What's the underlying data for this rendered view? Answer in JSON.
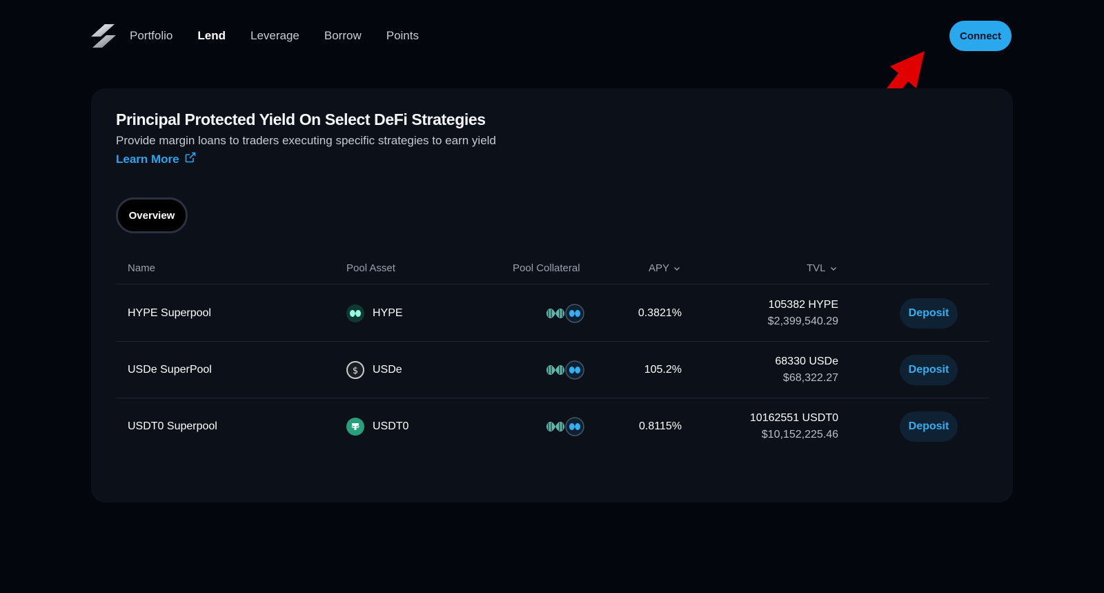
{
  "nav": {
    "logo": "brand-logo",
    "links": [
      {
        "label": "Portfolio",
        "active": false
      },
      {
        "label": "Lend",
        "active": true
      },
      {
        "label": "Leverage",
        "active": false
      },
      {
        "label": "Borrow",
        "active": false
      },
      {
        "label": "Points",
        "active": false
      }
    ],
    "connect_label": "Connect"
  },
  "annotation": {
    "icon": "red-arrow-pointer",
    "color": "#e00000"
  },
  "hero": {
    "title": "Principal Protected Yield On Select DeFi Strategies",
    "subtitle": "Provide margin loans to traders executing specific strategies to earn yield",
    "learn_more": "Learn More",
    "learn_more_icon": "external-link-icon"
  },
  "tabs": [
    {
      "label": "Overview",
      "active": true
    }
  ],
  "table": {
    "columns": {
      "name": "Name",
      "pool_asset": "Pool Asset",
      "pool_collateral": "Pool Collateral",
      "apy": "APY",
      "tvl": "TVL"
    },
    "rows": [
      {
        "name": "HYPE Superpool",
        "asset": "HYPE",
        "asset_icon": "hype-token-icon",
        "apy": "0.3821%",
        "tvl_amount": "105382 HYPE",
        "tvl_usd": "$2,399,540.29",
        "action": "Deposit"
      },
      {
        "name": "USDe SuperPool",
        "asset": "USDe",
        "asset_icon": "usde-token-icon",
        "apy": "105.2%",
        "tvl_amount": "68330 USDe",
        "tvl_usd": "$68,322.27",
        "action": "Deposit"
      },
      {
        "name": "USDT0 Superpool",
        "asset": "USDT0",
        "asset_icon": "usdt0-token-icon",
        "apy": "0.8115%",
        "tvl_amount": "10162551 USDT0",
        "tvl_usd": "$10,152,225.46",
        "action": "Deposit"
      }
    ]
  },
  "colors": {
    "background": "#03060d",
    "card": "#0c1019",
    "accent": "#29a8ee",
    "hype_green": "#97fce4",
    "usdt_green": "#26a17b"
  }
}
